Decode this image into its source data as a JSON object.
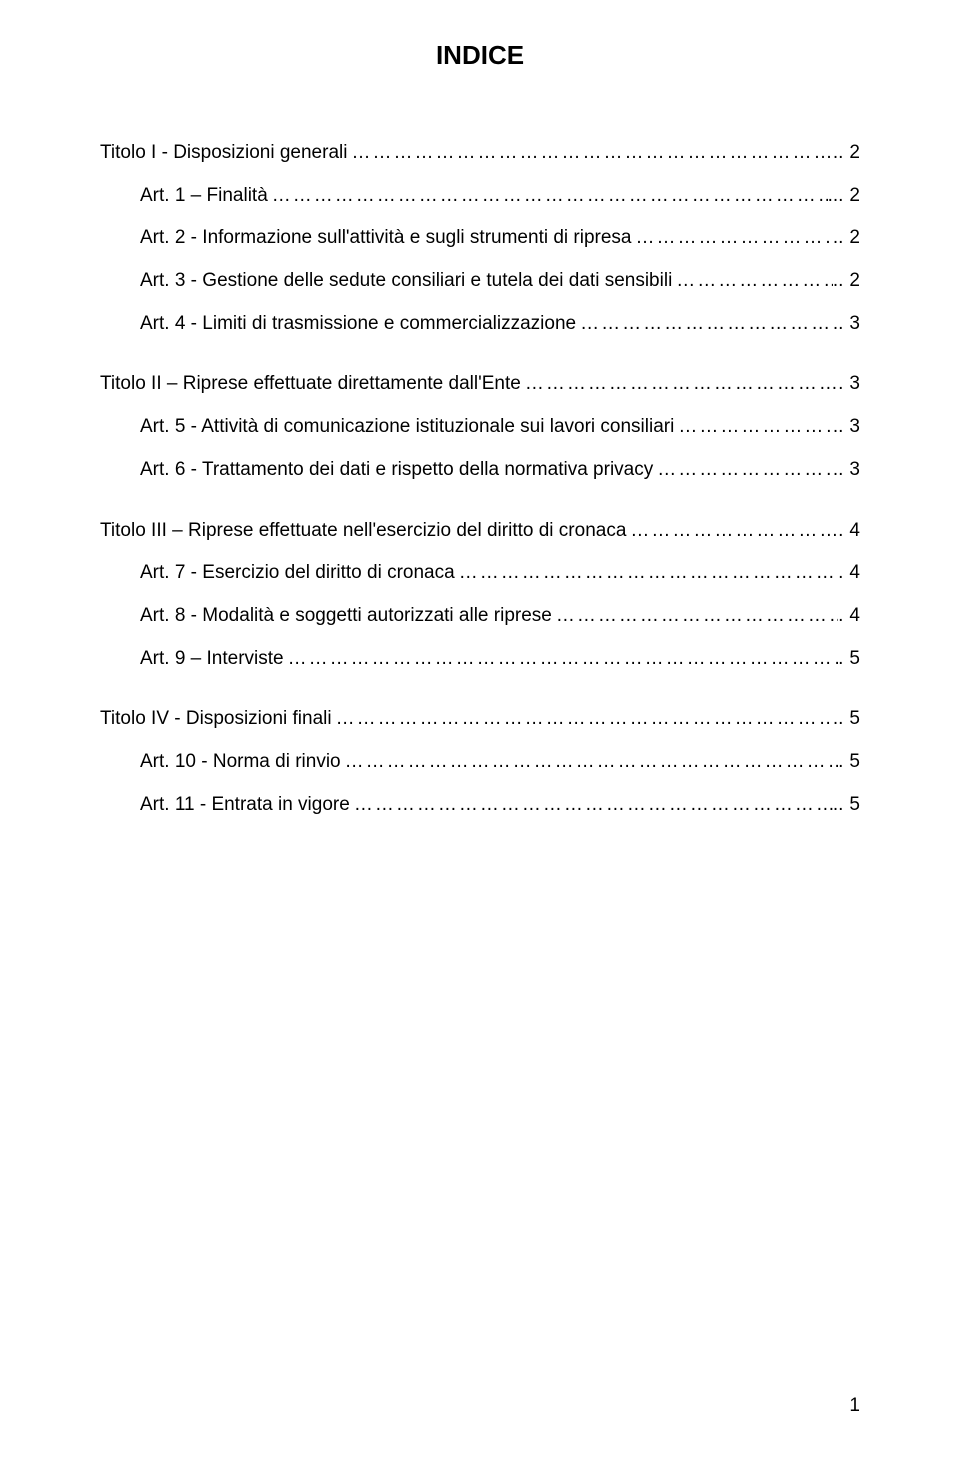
{
  "title": "INDICE",
  "leader_dots": "………………………………………………………………………………………………………………………………………………………………………………",
  "leader_dot": ".",
  "footer_page": "1",
  "typography": {
    "font_family": "Arial",
    "title_fontsize": 26,
    "title_weight": "bold",
    "body_fontsize": 19,
    "text_color": "#000000",
    "background_color": "#ffffff"
  },
  "sections": [
    {
      "heading": {
        "label": "Titolo I - Disposizioni generali",
        "page": "2",
        "trail": ".."
      },
      "items": [
        {
          "label": "Art. 1 – Finalità",
          "page": "2",
          "trail": "..."
        },
        {
          "label": "Art. 2 - Informazione sull'attività e sugli strumenti di ripresa",
          "page": "2",
          "trail": ".."
        },
        {
          "label": "Art. 3 - Gestione delle sedute consiliari e tutela dei dati sensibili",
          "page": "2",
          "trail": ".."
        },
        {
          "label": "Art. 4 - Limiti di trasmissione e commercializzazione",
          "page": "3",
          "trail": ".."
        }
      ]
    },
    {
      "heading": {
        "label": "Titolo II – Riprese effettuate direttamente dall'Ente",
        "page": "3",
        "trail": "."
      },
      "items": [
        {
          "label": "Art. 5 - Attività di comunicazione istituzionale sui lavori consiliari",
          "page": "3",
          "trail": ".."
        },
        {
          "label": "Art. 6 - Trattamento dei dati e rispetto della normativa privacy",
          "page": "3",
          "trail": ".."
        }
      ]
    },
    {
      "heading": {
        "label": "Titolo III – Riprese effettuate nell'esercizio del diritto di cronaca",
        "page": "4",
        "trail": "."
      },
      "items": [
        {
          "label": "Art. 7 - Esercizio del diritto di cronaca",
          "page": "4",
          "trail": "."
        },
        {
          "label": "Art. 8 - Modalità e soggetti autorizzati alle riprese",
          "page": "4",
          "trail": "."
        },
        {
          "label": "Art. 9 – Interviste",
          "page": "5",
          "trail": "."
        }
      ]
    },
    {
      "heading": {
        "label": "Titolo IV - Disposizioni finali",
        "page": "5",
        "trail": ".."
      },
      "items": [
        {
          "label": "Art. 10 - Norma di rinvio",
          "page": "5",
          "trail": "."
        },
        {
          "label": "Art. 11 - Entrata in vigore",
          "page": "5",
          "trail": ".."
        }
      ]
    }
  ]
}
